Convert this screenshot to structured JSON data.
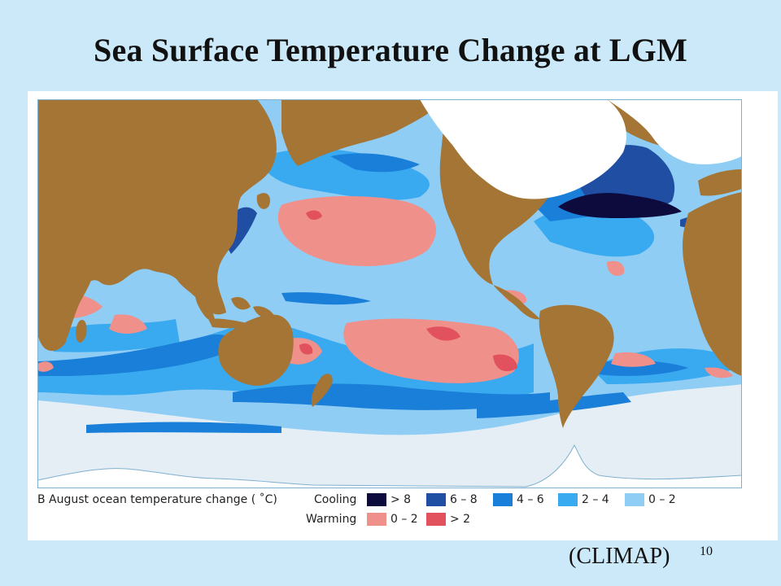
{
  "slide": {
    "title": "Sea Surface Temperature Change at LGM",
    "source": "(CLIMAP)",
    "page_number": "10"
  },
  "legend": {
    "panel_caption": "B  August ocean temperature change ( ˚C)",
    "cooling_label": "Cooling",
    "warming_label": "Warming",
    "cooling": [
      {
        "label": "> 8",
        "color": "#0d0a3e"
      },
      {
        "label": "6 – 8",
        "color": "#1f4ea3"
      },
      {
        "label": "4 – 6",
        "color": "#1a7fd8"
      },
      {
        "label": "2 – 4",
        "color": "#3aaaf0"
      },
      {
        "label": "0 – 2",
        "color": "#8fcdf5"
      }
    ],
    "warming": [
      {
        "label": "0 – 2",
        "color": "#f0908a"
      },
      {
        "label": "> 2",
        "color": "#e2525e"
      }
    ]
  },
  "colors": {
    "land": "#a47534",
    "ice": "#ffffff",
    "sea_ice": "#e4eef4",
    "ocean_base": "#8fcdf5"
  }
}
